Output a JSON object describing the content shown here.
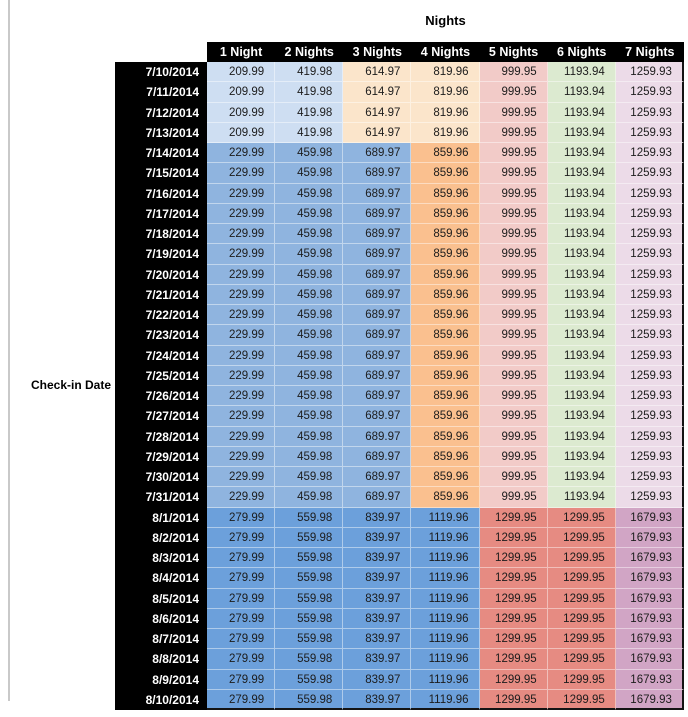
{
  "chart_data": {
    "type": "table",
    "title": "Nights",
    "row_label": "Check-in Date",
    "columns": [
      "1 Night",
      "2 Nights",
      "3 Nights",
      "4 Nights",
      "5 Nights",
      "6 Nights",
      "7 Nights"
    ],
    "rows": [
      {
        "date": "7/10/2014",
        "band": "early",
        "values": [
          "209.99",
          "419.98",
          "614.97",
          "819.96",
          "999.95",
          "1193.94",
          "1259.93"
        ]
      },
      {
        "date": "7/11/2014",
        "band": "early",
        "values": [
          "209.99",
          "419.98",
          "614.97",
          "819.96",
          "999.95",
          "1193.94",
          "1259.93"
        ]
      },
      {
        "date": "7/12/2014",
        "band": "early",
        "values": [
          "209.99",
          "419.98",
          "614.97",
          "819.96",
          "999.95",
          "1193.94",
          "1259.93"
        ]
      },
      {
        "date": "7/13/2014",
        "band": "early",
        "values": [
          "209.99",
          "419.98",
          "614.97",
          "819.96",
          "999.95",
          "1193.94",
          "1259.93"
        ]
      },
      {
        "date": "7/14/2014",
        "band": "mid",
        "values": [
          "229.99",
          "459.98",
          "689.97",
          "859.96",
          "999.95",
          "1193.94",
          "1259.93"
        ]
      },
      {
        "date": "7/15/2014",
        "band": "mid",
        "values": [
          "229.99",
          "459.98",
          "689.97",
          "859.96",
          "999.95",
          "1193.94",
          "1259.93"
        ]
      },
      {
        "date": "7/16/2014",
        "band": "mid",
        "values": [
          "229.99",
          "459.98",
          "689.97",
          "859.96",
          "999.95",
          "1193.94",
          "1259.93"
        ]
      },
      {
        "date": "7/17/2014",
        "band": "mid",
        "values": [
          "229.99",
          "459.98",
          "689.97",
          "859.96",
          "999.95",
          "1193.94",
          "1259.93"
        ]
      },
      {
        "date": "7/18/2014",
        "band": "mid",
        "values": [
          "229.99",
          "459.98",
          "689.97",
          "859.96",
          "999.95",
          "1193.94",
          "1259.93"
        ]
      },
      {
        "date": "7/19/2014",
        "band": "mid",
        "values": [
          "229.99",
          "459.98",
          "689.97",
          "859.96",
          "999.95",
          "1193.94",
          "1259.93"
        ]
      },
      {
        "date": "7/20/2014",
        "band": "mid",
        "values": [
          "229.99",
          "459.98",
          "689.97",
          "859.96",
          "999.95",
          "1193.94",
          "1259.93"
        ]
      },
      {
        "date": "7/21/2014",
        "band": "mid",
        "values": [
          "229.99",
          "459.98",
          "689.97",
          "859.96",
          "999.95",
          "1193.94",
          "1259.93"
        ]
      },
      {
        "date": "7/22/2014",
        "band": "mid",
        "values": [
          "229.99",
          "459.98",
          "689.97",
          "859.96",
          "999.95",
          "1193.94",
          "1259.93"
        ]
      },
      {
        "date": "7/23/2014",
        "band": "mid",
        "values": [
          "229.99",
          "459.98",
          "689.97",
          "859.96",
          "999.95",
          "1193.94",
          "1259.93"
        ]
      },
      {
        "date": "7/24/2014",
        "band": "mid",
        "values": [
          "229.99",
          "459.98",
          "689.97",
          "859.96",
          "999.95",
          "1193.94",
          "1259.93"
        ]
      },
      {
        "date": "7/25/2014",
        "band": "mid",
        "values": [
          "229.99",
          "459.98",
          "689.97",
          "859.96",
          "999.95",
          "1193.94",
          "1259.93"
        ]
      },
      {
        "date": "7/26/2014",
        "band": "mid",
        "values": [
          "229.99",
          "459.98",
          "689.97",
          "859.96",
          "999.95",
          "1193.94",
          "1259.93"
        ]
      },
      {
        "date": "7/27/2014",
        "band": "mid",
        "values": [
          "229.99",
          "459.98",
          "689.97",
          "859.96",
          "999.95",
          "1193.94",
          "1259.93"
        ]
      },
      {
        "date": "7/28/2014",
        "band": "mid",
        "values": [
          "229.99",
          "459.98",
          "689.97",
          "859.96",
          "999.95",
          "1193.94",
          "1259.93"
        ]
      },
      {
        "date": "7/29/2014",
        "band": "mid",
        "values": [
          "229.99",
          "459.98",
          "689.97",
          "859.96",
          "999.95",
          "1193.94",
          "1259.93"
        ]
      },
      {
        "date": "7/30/2014",
        "band": "mid",
        "values": [
          "229.99",
          "459.98",
          "689.97",
          "859.96",
          "999.95",
          "1193.94",
          "1259.93"
        ]
      },
      {
        "date": "7/31/2014",
        "band": "mid",
        "values": [
          "229.99",
          "459.98",
          "689.97",
          "859.96",
          "999.95",
          "1193.94",
          "1259.93"
        ]
      },
      {
        "date": "8/1/2014",
        "band": "august",
        "values": [
          "279.99",
          "559.98",
          "839.97",
          "1119.96",
          "1299.95",
          "1299.95",
          "1679.93"
        ]
      },
      {
        "date": "8/2/2014",
        "band": "august",
        "values": [
          "279.99",
          "559.98",
          "839.97",
          "1119.96",
          "1299.95",
          "1299.95",
          "1679.93"
        ]
      },
      {
        "date": "8/3/2014",
        "band": "august",
        "values": [
          "279.99",
          "559.98",
          "839.97",
          "1119.96",
          "1299.95",
          "1299.95",
          "1679.93"
        ]
      },
      {
        "date": "8/4/2014",
        "band": "august",
        "values": [
          "279.99",
          "559.98",
          "839.97",
          "1119.96",
          "1299.95",
          "1299.95",
          "1679.93"
        ]
      },
      {
        "date": "8/5/2014",
        "band": "august",
        "values": [
          "279.99",
          "559.98",
          "839.97",
          "1119.96",
          "1299.95",
          "1299.95",
          "1679.93"
        ]
      },
      {
        "date": "8/6/2014",
        "band": "august",
        "values": [
          "279.99",
          "559.98",
          "839.97",
          "1119.96",
          "1299.95",
          "1299.95",
          "1679.93"
        ]
      },
      {
        "date": "8/7/2014",
        "band": "august",
        "values": [
          "279.99",
          "559.98",
          "839.97",
          "1119.96",
          "1299.95",
          "1299.95",
          "1679.93"
        ]
      },
      {
        "date": "8/8/2014",
        "band": "august",
        "values": [
          "279.99",
          "559.98",
          "839.97",
          "1119.96",
          "1299.95",
          "1299.95",
          "1679.93"
        ]
      },
      {
        "date": "8/9/2014",
        "band": "august",
        "values": [
          "279.99",
          "559.98",
          "839.97",
          "1119.96",
          "1299.95",
          "1299.95",
          "1679.93"
        ]
      },
      {
        "date": "8/10/2014",
        "band": "august",
        "values": [
          "279.99",
          "559.98",
          "839.97",
          "1119.96",
          "1299.95",
          "1299.95",
          "1679.93"
        ]
      }
    ]
  },
  "colors": {
    "header_bg": "#000000",
    "header_text": "#ffffff",
    "cell_text": "#1c1c1c",
    "bands": {
      "early": [
        "#CEDEF2",
        "#CEDEF2",
        "#FBE5CB",
        "#FBE5CB",
        "#F2CBC8",
        "#DCEAD0",
        "#ECDBE8"
      ],
      "mid": [
        "#8FB4DF",
        "#8FB4DF",
        "#8FB4DF",
        "#FAC08F",
        "#F2CBC8",
        "#DCEAD0",
        "#ECDBE8"
      ],
      "august": [
        "#6CA0DB",
        "#6CA0DB",
        "#6CA0DB",
        "#6CA0DB",
        "#E68B82",
        "#E68B82",
        "#D1A5C5"
      ]
    }
  }
}
